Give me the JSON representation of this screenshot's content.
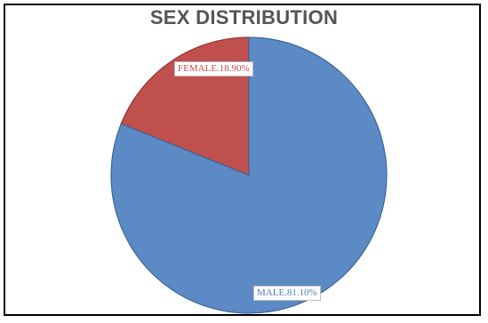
{
  "chart_data": {
    "type": "pie",
    "title": "SEX DISTRIBUTION",
    "categories": [
      "FEMALE",
      "MALE"
    ],
    "values": [
      18.9,
      81.1
    ],
    "unit": "%",
    "data_labels": [
      "FEMALE.18.90%",
      "MALE.81.10%"
    ],
    "colors": [
      "#c0504d",
      "#5b8ac5"
    ],
    "edge_colors": [
      "#943634",
      "#3f6597"
    ],
    "label_colors": [
      "#c0504d",
      "#4f81bd"
    ],
    "legend": "none"
  }
}
